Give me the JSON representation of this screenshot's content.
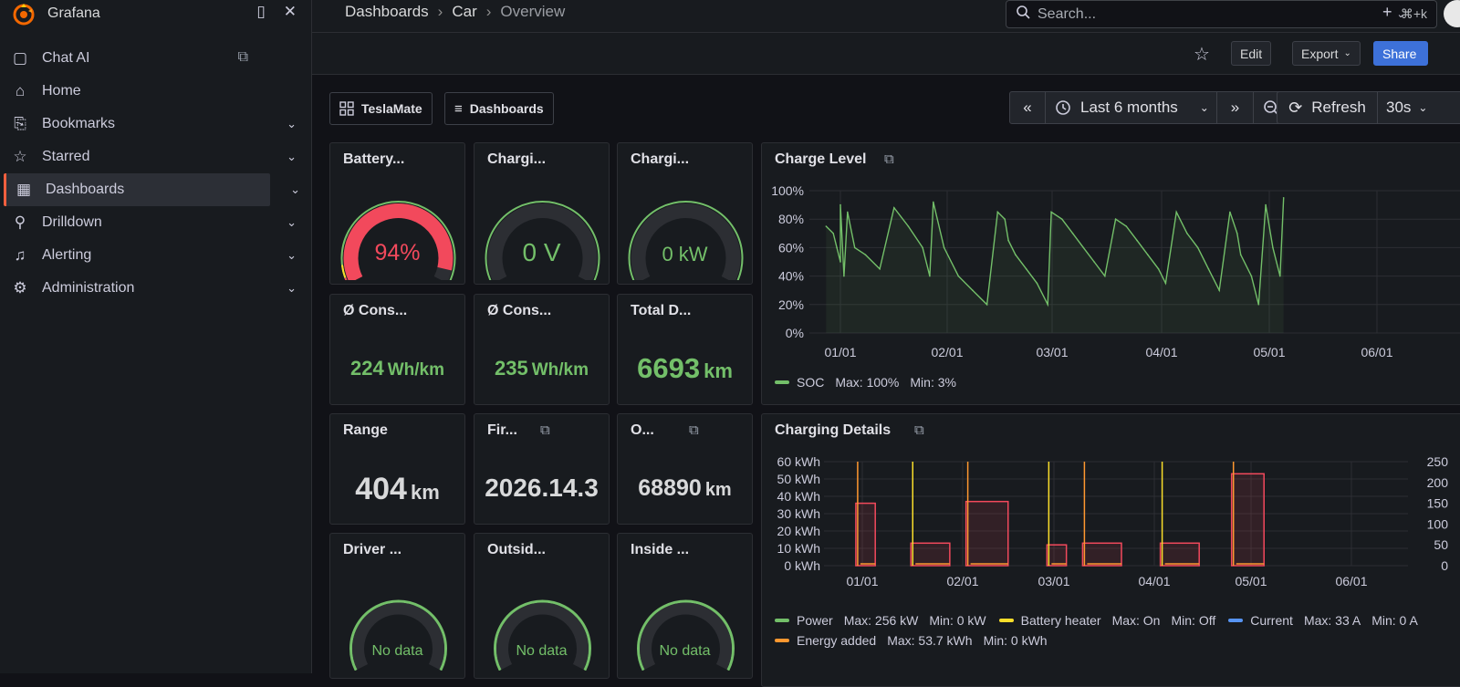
{
  "app": {
    "title": "Grafana"
  },
  "sidebar": {
    "items": [
      {
        "label": "Chat AI",
        "icon": "chat-icon"
      },
      {
        "label": "Home",
        "icon": "home-icon"
      },
      {
        "label": "Bookmarks",
        "icon": "bookmark-icon"
      },
      {
        "label": "Starred",
        "icon": "star-icon"
      },
      {
        "label": "Dashboards",
        "icon": "dashboards-icon",
        "active": true
      },
      {
        "label": "Drilldown",
        "icon": "drilldown-icon"
      },
      {
        "label": "Alerting",
        "icon": "bell-icon"
      },
      {
        "label": "Administration",
        "icon": "gear-icon"
      }
    ]
  },
  "breadcrumb": {
    "items": [
      "Dashboards",
      "Car",
      "Overview"
    ]
  },
  "search": {
    "placeholder": "Search...",
    "shortcut": "⌘+k"
  },
  "toolbar": {
    "edit_label": "Edit",
    "export_label": "Export",
    "share_label": "Share"
  },
  "controls": {
    "links": [
      "TeslaMate",
      "Dashboards"
    ],
    "time_range": "Last 6 months",
    "refresh_label": "Refresh",
    "refresh_interval": "30s"
  },
  "colors": {
    "accent": "#f55f3e",
    "green": "#73bf69",
    "red": "#f2495c",
    "yellow": "#fade2a",
    "blue": "#5794f2",
    "orange": "#ff9830"
  },
  "panels": {
    "battery": {
      "title": "Battery...",
      "value": "94%",
      "gauge_fraction": 0.94
    },
    "charging_voltage": {
      "title": "Chargi...",
      "value": "0 V",
      "gauge_fraction": 0
    },
    "charging_power": {
      "title": "Chargi...",
      "value": "0 kW",
      "gauge_fraction": 0
    },
    "cons1": {
      "title": "Ø Cons...",
      "value": "224",
      "unit": "Wh/km"
    },
    "cons2": {
      "title": "Ø Cons...",
      "value": "235",
      "unit": "Wh/km"
    },
    "total_distance": {
      "title": "Total D...",
      "value": "6693",
      "unit": "km"
    },
    "range": {
      "title": "Range",
      "value": "404",
      "unit": "km"
    },
    "firmware": {
      "title": "Fir...",
      "value": "2026.14.3"
    },
    "odometer": {
      "title": "O...",
      "value": "68890",
      "unit": "km"
    },
    "driver_temp": {
      "title": "Driver ...",
      "value": "No data"
    },
    "outside_temp": {
      "title": "Outsid...",
      "value": "No data"
    },
    "inside_temp": {
      "title": "Inside ...",
      "value": "No data"
    }
  },
  "chart_data": [
    {
      "type": "line",
      "title": "Charge Level",
      "x_ticks": [
        "01/01",
        "02/01",
        "03/01",
        "04/01",
        "05/01",
        "06/01"
      ],
      "y_ticks": [
        "100%",
        "80%",
        "60%",
        "40%",
        "20%",
        "0%"
      ],
      "ylim": [
        0,
        100
      ],
      "series": [
        {
          "name": "SOC",
          "color": "#73bf69",
          "x": [
            "12/27",
            "12/29",
            "12/30",
            "12/31",
            "01/01",
            "01/02",
            "01/03",
            "01/05",
            "01/08",
            "01/12",
            "01/16",
            "01/20",
            "01/24",
            "01/26",
            "01/27",
            "01/30",
            "02/03",
            "02/07",
            "02/11",
            "02/14",
            "02/16",
            "02/17",
            "02/19",
            "02/22",
            "02/25",
            "02/28",
            "03/01",
            "03/04",
            "03/07",
            "03/10",
            "03/13",
            "03/16",
            "03/19",
            "03/22",
            "03/25",
            "03/28",
            "03/31",
            "04/02",
            "04/05",
            "04/08",
            "04/11",
            "04/14",
            "04/17",
            "04/20",
            "04/22",
            "04/23",
            "04/26",
            "04/28",
            "04/30",
            "05/02",
            "05/04",
            "05/05"
          ],
          "values": [
            75,
            70,
            60,
            50,
            90,
            40,
            85,
            60,
            55,
            45,
            88,
            75,
            60,
            40,
            92,
            60,
            40,
            30,
            20,
            85,
            80,
            65,
            55,
            45,
            35,
            20,
            85,
            80,
            70,
            60,
            50,
            40,
            80,
            75,
            65,
            55,
            45,
            35,
            85,
            70,
            60,
            45,
            30,
            85,
            70,
            55,
            40,
            20,
            90,
            60,
            40,
            95
          ],
          "max": "100%",
          "min": "3%"
        }
      ]
    },
    {
      "type": "bar",
      "title": "Charging Details",
      "x_ticks": [
        "01/01",
        "02/01",
        "03/01",
        "04/01",
        "05/01",
        "06/01"
      ],
      "y_ticks_left": [
        "60 kWh",
        "50 kWh",
        "40 kWh",
        "30 kWh",
        "20 kWh",
        "10 kWh",
        "0 kWh"
      ],
      "y_ticks_right": [
        "250",
        "200",
        "150",
        "100",
        "50",
        "0"
      ],
      "ylim": [
        0,
        60
      ],
      "series": [
        {
          "name": "Power",
          "color": "#73bf69",
          "max": "256 kW",
          "min": "0 kW",
          "sessions": [
            {
              "start": "12/29",
              "end": "01/05",
              "value": 36
            },
            {
              "start": "01/16",
              "end": "01/28",
              "value": 13
            },
            {
              "start": "02/02",
              "end": "02/15",
              "value": 37
            },
            {
              "start": "02/27",
              "end": "03/05",
              "value": 12
            },
            {
              "start": "03/10",
              "end": "03/22",
              "value": 13
            },
            {
              "start": "04/03",
              "end": "04/15",
              "value": 13
            },
            {
              "start": "04/25",
              "end": "05/05",
              "value": 53
            }
          ]
        },
        {
          "name": "Battery heater",
          "color": "#fade2a",
          "max": "On",
          "min": "Off"
        },
        {
          "name": "Current",
          "color": "#5794f2",
          "max": "33 A",
          "min": "0 A"
        },
        {
          "name": "Energy added",
          "color": "#ff9830",
          "max": "53.7 kWh",
          "min": "0 kWh"
        }
      ]
    }
  ]
}
